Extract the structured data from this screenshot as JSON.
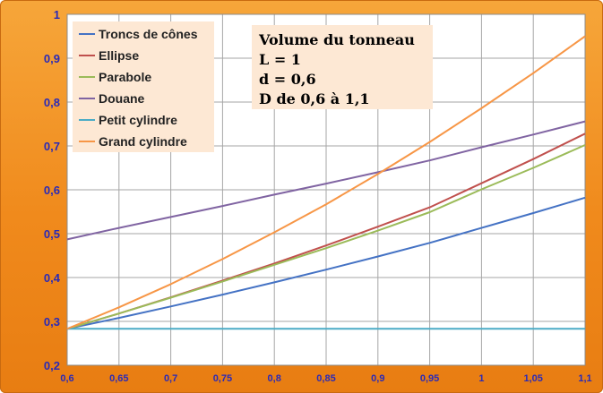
{
  "chart_data": {
    "type": "line",
    "title": "",
    "xlabel": "",
    "ylabel": "",
    "xlim": [
      0.6,
      1.1
    ],
    "ylim": [
      0.2,
      1
    ],
    "x_ticks": [
      "0,6",
      "0,65",
      "0,7",
      "0,75",
      "0,8",
      "0,85",
      "0,9",
      "0,95",
      "1",
      "1,05",
      "1,1"
    ],
    "y_ticks": [
      "0,2",
      "0,3",
      "0,4",
      "0,5",
      "0,6",
      "0,7",
      "0,8",
      "0,9",
      "1"
    ],
    "grid": true,
    "legend_position": "top-left",
    "x": [
      0.6,
      0.65,
      0.7,
      0.75,
      0.8,
      0.85,
      0.9,
      0.95,
      1.0,
      1.05,
      1.1
    ],
    "series": [
      {
        "name": "Troncs de cônes",
        "color": "#4472c4",
        "values": [
          0.283,
          0.308,
          0.334,
          0.361,
          0.389,
          0.418,
          0.448,
          0.479,
          0.513,
          0.547,
          0.582
        ]
      },
      {
        "name": "Ellipse",
        "color": "#c0504d",
        "values": [
          0.283,
          0.318,
          0.355,
          0.393,
          0.432,
          0.473,
          0.516,
          0.56,
          0.615,
          0.67,
          0.728
        ]
      },
      {
        "name": "Parabole",
        "color": "#9bbb59",
        "values": [
          0.283,
          0.318,
          0.354,
          0.391,
          0.429,
          0.467,
          0.507,
          0.549,
          0.601,
          0.65,
          0.702
        ]
      },
      {
        "name": "Douane",
        "color": "#8064a2",
        "values": [
          0.487,
          0.513,
          0.538,
          0.563,
          0.589,
          0.614,
          0.64,
          0.667,
          0.697,
          0.726,
          0.756
        ]
      },
      {
        "name": "Petit cylindre",
        "color": "#4bacc6",
        "values": [
          0.283,
          0.283,
          0.283,
          0.283,
          0.283,
          0.283,
          0.283,
          0.283,
          0.283,
          0.283,
          0.283
        ]
      },
      {
        "name": "Grand cylindre",
        "color": "#f79646",
        "values": [
          0.283,
          0.332,
          0.385,
          0.442,
          0.503,
          0.567,
          0.636,
          0.709,
          0.786,
          0.866,
          0.95
        ]
      }
    ],
    "annotation": {
      "lines": [
        "Volume du tonneau",
        "L = 1",
        "d = 0,6",
        "D de 0,6 à 1,1"
      ]
    }
  }
}
